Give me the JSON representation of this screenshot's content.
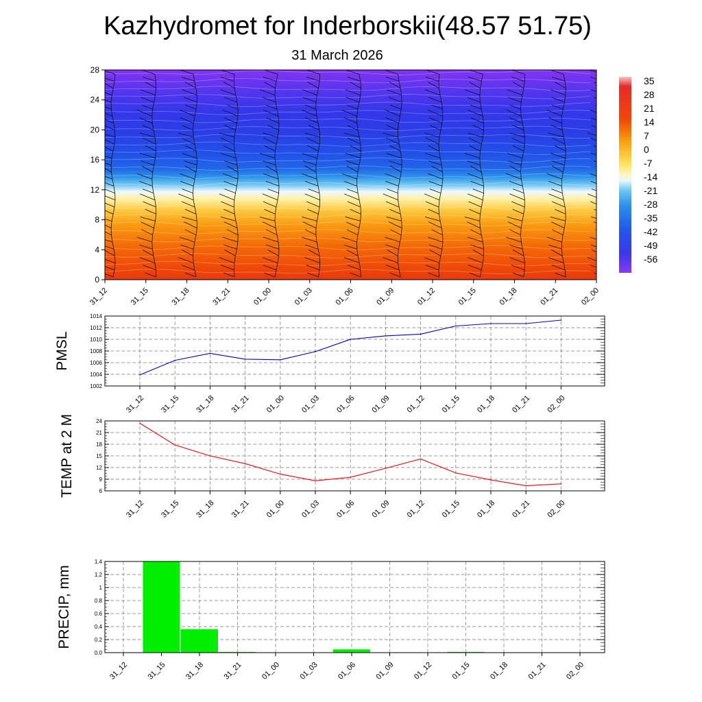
{
  "title": "Kazhydromet for Inderborskii(48.57 51.75)",
  "subtitle": "31 March 2026",
  "time_labels": [
    "31_12",
    "31_15",
    "31_18",
    "31_21",
    "01_00",
    "01_03",
    "01_06",
    "01_09",
    "01_12",
    "01_15",
    "01_18",
    "01_21",
    "02_00"
  ],
  "chart_data": [
    {
      "type": "heatmap",
      "name": "Temperature cross-section with wind barbs",
      "x": [
        "31_12",
        "31_15",
        "31_18",
        "31_21",
        "01_00",
        "01_03",
        "01_06",
        "01_09",
        "01_12",
        "01_15",
        "01_18",
        "01_21",
        "02_00"
      ],
      "y_ticks": [
        0,
        4,
        8,
        12,
        16,
        20,
        24,
        28
      ],
      "ylim": [
        0,
        28
      ],
      "colorbar_labels": [
        "35",
        "28",
        "21",
        "14",
        "7",
        "0",
        "-7",
        "-14",
        "-21",
        "-28",
        "-35",
        "-42",
        "-49",
        "-56"
      ],
      "colorbar_range": [
        -60,
        40
      ],
      "freezing_level": 12,
      "legend": "right"
    },
    {
      "type": "line",
      "ylabel": "PMSL",
      "categories": [
        "31_12",
        "31_15",
        "31_18",
        "31_21",
        "01_00",
        "01_03",
        "01_06",
        "01_09",
        "01_12",
        "01_15",
        "01_18",
        "01_21",
        "02_00"
      ],
      "values": [
        1003.9,
        1006.4,
        1007.6,
        1006.6,
        1006.5,
        1007.9,
        1010.0,
        1010.6,
        1010.9,
        1012.3,
        1012.7,
        1012.7,
        1013.3
      ],
      "ylim": [
        1002,
        1014
      ],
      "yticks": [
        "1002",
        "1004",
        "1006",
        "1008",
        "1010",
        "1012",
        "1014"
      ],
      "color": "#0000cc"
    },
    {
      "type": "line",
      "ylabel": "TEMP at 2 M",
      "categories": [
        "31_12",
        "31_15",
        "31_18",
        "31_21",
        "01_00",
        "01_03",
        "01_06",
        "01_09",
        "01_12",
        "01_15",
        "01_18",
        "01_21",
        "02_00"
      ],
      "values": [
        23.4,
        17.8,
        15.0,
        13.0,
        10.3,
        8.6,
        9.5,
        11.8,
        14.2,
        10.6,
        8.8,
        7.3,
        7.8
      ],
      "ylim": [
        6,
        24
      ],
      "yticks": [
        "6",
        "9",
        "12",
        "15",
        "18",
        "21",
        "24"
      ],
      "color": "#ff0000"
    },
    {
      "type": "bar",
      "ylabel": "PRECIP, mm",
      "categories": [
        "31_12",
        "31_15",
        "31_18",
        "31_21",
        "01_00",
        "01_03",
        "01_06",
        "01_09",
        "01_12",
        "01_15",
        "01_18",
        "01_21",
        "02_00"
      ],
      "values": [
        0,
        1.4,
        0.36,
        0.01,
        0,
        0,
        0.05,
        0,
        0,
        0.01,
        0,
        0,
        0
      ],
      "ylim": [
        0,
        1.4
      ],
      "yticks": [
        "0.0",
        "0.2",
        "0.4",
        "0.6",
        "0.8",
        "1",
        "1.2",
        "1.4"
      ],
      "color": "#00ee00"
    }
  ]
}
